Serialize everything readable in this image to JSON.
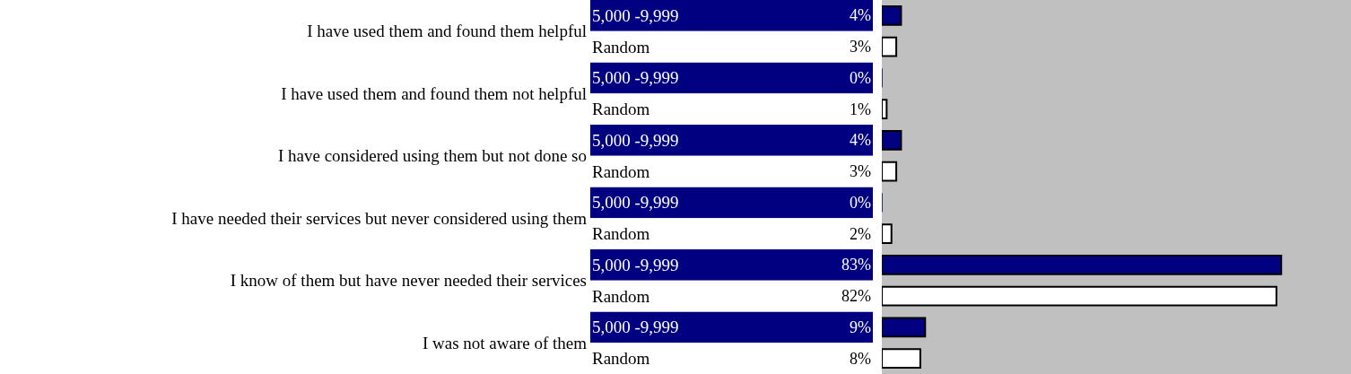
{
  "chart_data": {
    "type": "bar",
    "orientation": "horizontal",
    "categories": [
      "I have used them and found them helpful",
      "I have used them and found them not helpful",
      "I have considered using them but not done so",
      "I have needed their services but never considered using them",
      "I know of them but have never needed their services",
      "I was not aware of them"
    ],
    "series": [
      {
        "name": "5,000 -9,999",
        "color": "#000080",
        "values": [
          4,
          0,
          4,
          0,
          83,
          9
        ],
        "value_labels": [
          "4%",
          "0%",
          "4%",
          "0%",
          "83%",
          "9%"
        ]
      },
      {
        "name": "Random",
        "color": "#ffffff",
        "values": [
          3,
          1,
          3,
          2,
          82,
          8
        ],
        "value_labels": [
          "3%",
          "1%",
          "3%",
          "2%",
          "82%",
          "8%"
        ]
      }
    ],
    "xlim": [
      0,
      97.5
    ],
    "tick_labels": "y",
    "grid": false,
    "legend": false
  }
}
